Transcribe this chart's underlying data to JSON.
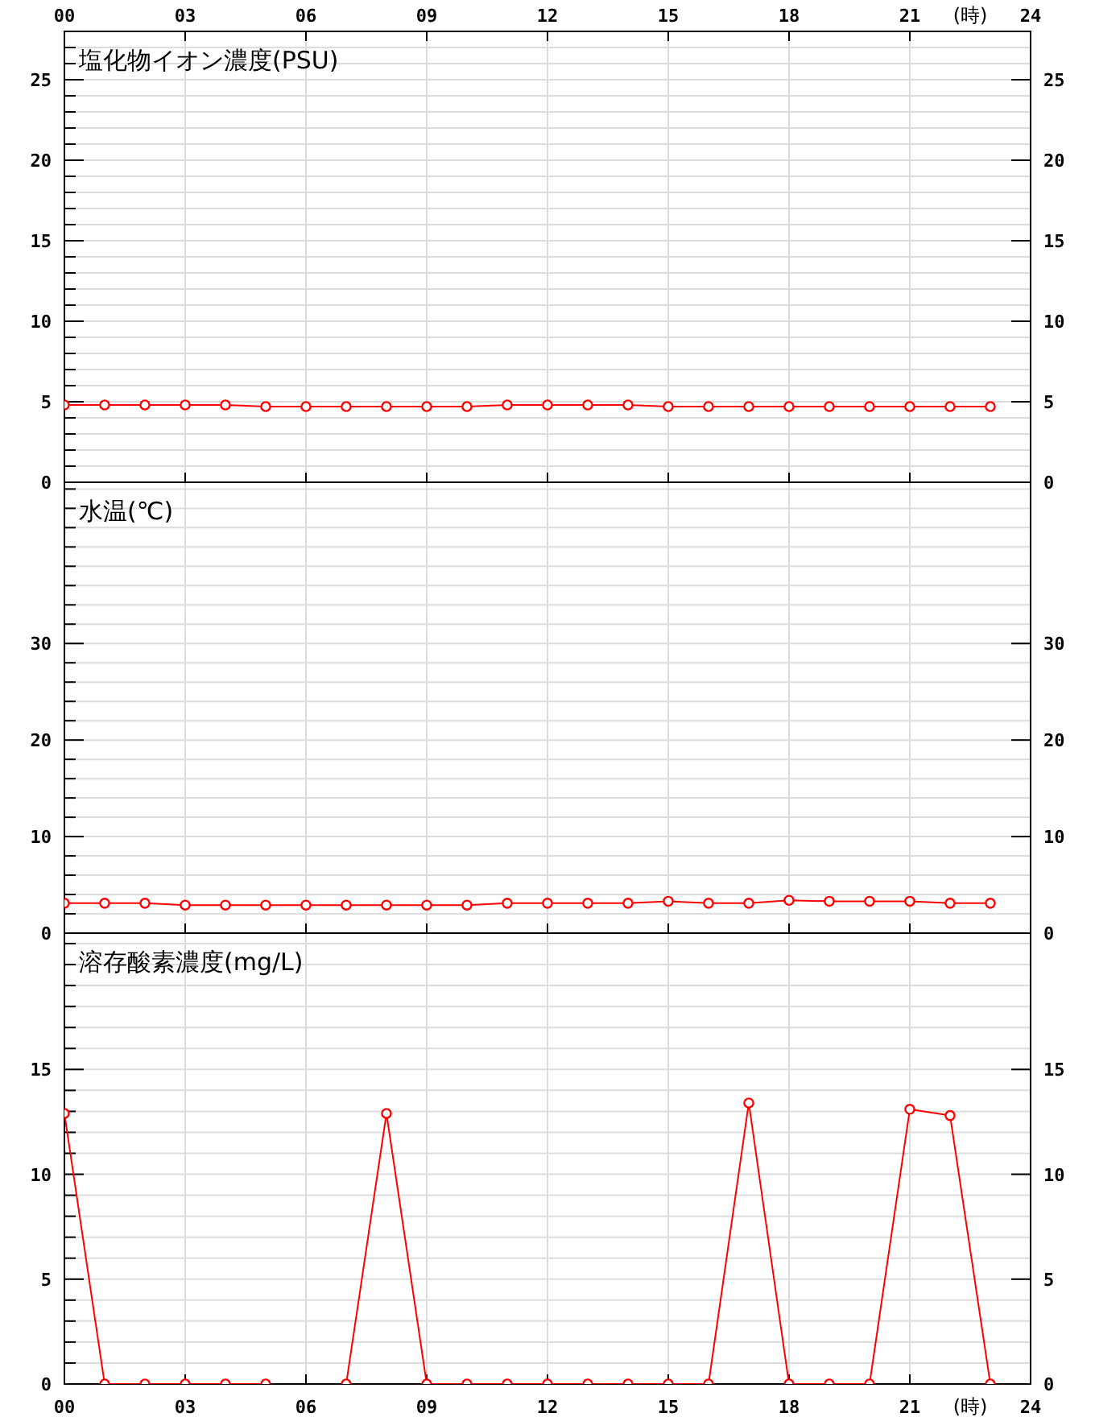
{
  "chart_data": [
    {
      "type": "line",
      "title": "塩化物イオン濃度(PSU)",
      "x": [
        0,
        1,
        2,
        3,
        4,
        5,
        6,
        7,
        8,
        9,
        10,
        11,
        12,
        13,
        14,
        15,
        16,
        17,
        18,
        19,
        20,
        21,
        22,
        23
      ],
      "series": [
        {
          "color": "#ff0000",
          "values": [
            4.8,
            4.8,
            4.8,
            4.8,
            4.8,
            4.7,
            4.7,
            4.7,
            4.7,
            4.7,
            4.7,
            4.8,
            4.8,
            4.8,
            4.8,
            4.7,
            4.7,
            4.7,
            4.7,
            4.7,
            4.7,
            4.7,
            4.7,
            4.7
          ]
        }
      ],
      "marker": "circle",
      "grid": true,
      "xlim": [
        0,
        24
      ],
      "xlabel": "(時)",
      "xticks": [
        {
          "value": 0,
          "label": "00"
        },
        {
          "value": 3,
          "label": "03"
        },
        {
          "value": 6,
          "label": "06"
        },
        {
          "value": 9,
          "label": "09"
        },
        {
          "value": 12,
          "label": "12"
        },
        {
          "value": 15,
          "label": "15"
        },
        {
          "value": 18,
          "label": "18"
        },
        {
          "value": 21,
          "label": "21"
        },
        {
          "value": 24,
          "label": "24"
        }
      ],
      "ylim": [
        0,
        28
      ],
      "yticks": [
        0,
        {
          "value": 1,
          "label": null
        },
        {
          "value": 2,
          "label": null
        },
        {
          "value": 3,
          "label": null
        },
        {
          "value": 4,
          "label": null
        },
        5,
        {
          "value": 6,
          "label": null
        },
        {
          "value": 7,
          "label": null
        },
        {
          "value": 8,
          "label": null
        },
        {
          "value": 9,
          "label": null
        },
        10,
        {
          "value": 11,
          "label": null
        },
        {
          "value": 12,
          "label": null
        },
        {
          "value": 13,
          "label": null
        },
        {
          "value": 14,
          "label": null
        },
        15,
        {
          "value": 16,
          "label": null
        },
        {
          "value": 17,
          "label": null
        },
        {
          "value": 18,
          "label": null
        },
        {
          "value": 19,
          "label": null
        },
        20,
        {
          "value": 21,
          "label": null
        },
        {
          "value": 22,
          "label": null
        },
        {
          "value": 23,
          "label": null
        },
        {
          "value": 24,
          "label": null
        },
        25,
        {
          "value": 26,
          "label": null
        },
        {
          "value": 27,
          "label": null
        }
      ],
      "y2lim": [
        0,
        28
      ],
      "y2ticks": [
        0,
        5,
        10,
        15,
        20,
        25
      ]
    },
    {
      "type": "line",
      "title": "水温(℃)",
      "x": [
        0,
        1,
        2,
        3,
        4,
        5,
        6,
        7,
        8,
        9,
        10,
        11,
        12,
        13,
        14,
        15,
        16,
        17,
        18,
        19,
        20,
        21,
        22,
        23
      ],
      "series": [
        {
          "color": "#ff0000",
          "values": [
            3.1,
            3.1,
            3.1,
            2.9,
            2.9,
            2.9,
            2.9,
            2.9,
            2.9,
            2.9,
            2.9,
            3.1,
            3.1,
            3.1,
            3.1,
            3.3,
            3.1,
            3.1,
            3.4,
            3.3,
            3.3,
            3.3,
            3.1,
            3.1
          ]
        }
      ],
      "marker": "circle",
      "grid": true,
      "tick_labels": "y",
      "xlim": [
        0,
        24
      ],
      "xticks": [
        0,
        3,
        6,
        9,
        12,
        15,
        18,
        21,
        24
      ],
      "ylim": [
        0,
        46.7
      ],
      "yticks": [
        0,
        {
          "value": 2,
          "label": null
        },
        {
          "value": 4,
          "label": null
        },
        {
          "value": 6,
          "label": null
        },
        {
          "value": 8,
          "label": null
        },
        10,
        {
          "value": 12,
          "label": null
        },
        {
          "value": 14,
          "label": null
        },
        {
          "value": 16,
          "label": null
        },
        {
          "value": 18,
          "label": null
        },
        20,
        {
          "value": 22,
          "label": null
        },
        {
          "value": 24,
          "label": null
        },
        {
          "value": 26,
          "label": null
        },
        {
          "value": 28,
          "label": null
        },
        30,
        {
          "value": 32,
          "label": null
        },
        {
          "value": 34,
          "label": null
        },
        {
          "value": 36,
          "label": null
        },
        {
          "value": 38,
          "label": null
        },
        {
          "value": 40,
          "label": null
        },
        {
          "value": 42,
          "label": null
        },
        {
          "value": 44,
          "label": null
        },
        {
          "value": 46,
          "label": null
        }
      ],
      "y2lim": [
        0,
        46.7
      ],
      "y2ticks": [
        0,
        10,
        20,
        30
      ]
    },
    {
      "type": "line",
      "title": "溶存酸素濃度(mg/L)",
      "x": [
        0,
        1,
        2,
        3,
        4,
        5,
        6,
        7,
        8,
        9,
        10,
        11,
        12,
        13,
        14,
        15,
        16,
        17,
        18,
        19,
        20,
        21,
        22,
        23
      ],
      "series": [
        {
          "color": "#ff0000",
          "values": [
            12.9,
            0,
            0,
            0,
            0,
            0,
            null,
            0,
            12.9,
            0,
            0,
            0,
            0,
            0,
            0,
            0,
            0,
            13.4,
            0,
            0,
            0,
            13.1,
            12.8,
            0
          ]
        }
      ],
      "marker": "circle",
      "grid": true,
      "xlim": [
        0,
        24
      ],
      "xlabel": "(時)",
      "xticks": [
        {
          "value": 0,
          "label": "00"
        },
        {
          "value": 3,
          "label": "03"
        },
        {
          "value": 6,
          "label": "06"
        },
        {
          "value": 9,
          "label": "09"
        },
        {
          "value": 12,
          "label": "12"
        },
        {
          "value": 15,
          "label": "15"
        },
        {
          "value": 18,
          "label": "18"
        },
        {
          "value": 21,
          "label": "21"
        },
        {
          "value": 24,
          "label": "24"
        }
      ],
      "ylim": [
        0,
        21.5
      ],
      "yticks": [
        0,
        {
          "value": 1,
          "label": null
        },
        {
          "value": 2,
          "label": null
        },
        {
          "value": 3,
          "label": null
        },
        {
          "value": 4,
          "label": null
        },
        5,
        {
          "value": 6,
          "label": null
        },
        {
          "value": 7,
          "label": null
        },
        {
          "value": 8,
          "label": null
        },
        {
          "value": 9,
          "label": null
        },
        10,
        {
          "value": 11,
          "label": null
        },
        {
          "value": 12,
          "label": null
        },
        {
          "value": 13,
          "label": null
        },
        {
          "value": 14,
          "label": null
        },
        15,
        {
          "value": 16,
          "label": null
        },
        {
          "value": 17,
          "label": null
        },
        {
          "value": 18,
          "label": null
        },
        {
          "value": 19,
          "label": null
        },
        {
          "value": 20,
          "label": null
        },
        {
          "value": 21,
          "label": null
        }
      ],
      "y2lim": [
        0,
        21.5
      ],
      "y2ticks": [
        0,
        5,
        10,
        15
      ]
    }
  ]
}
